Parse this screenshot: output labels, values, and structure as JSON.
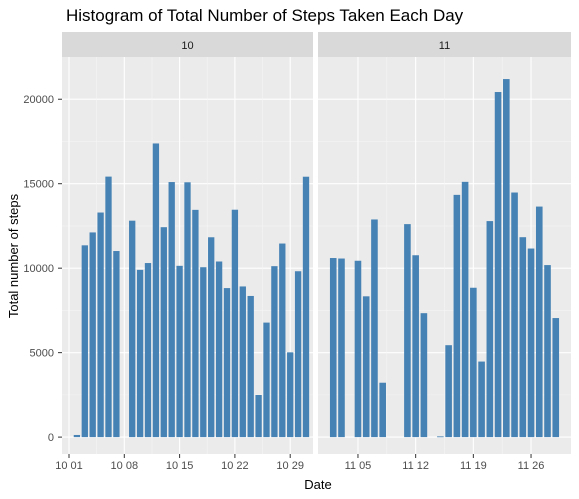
{
  "chart_data": {
    "type": "bar",
    "title": "Histogram of Total Number of Steps Taken Each Day",
    "xlabel": "Date",
    "ylabel": "Total number of steps",
    "ylim": [
      -1000,
      22500
    ],
    "y_ticks": [
      0,
      5000,
      10000,
      15000,
      20000
    ],
    "y_tick_labels": [
      "0",
      "5000",
      "10000",
      "15000",
      "20000"
    ],
    "facets": [
      {
        "label": "10",
        "x_ticks": [
          "10 01",
          "10 08",
          "10 15",
          "10 22",
          "10 29"
        ],
        "x_tick_days": [
          1,
          8,
          15,
          22,
          29
        ],
        "day_range": [
          1,
          31
        ],
        "days": [
          2,
          3,
          4,
          5,
          6,
          7,
          9,
          10,
          11,
          12,
          13,
          14,
          15,
          16,
          17,
          18,
          19,
          20,
          21,
          22,
          23,
          24,
          25,
          26,
          27,
          28,
          29,
          30,
          31
        ],
        "values": [
          126,
          11352,
          12116,
          13294,
          15420,
          11015,
          12811,
          9900,
          10304,
          17382,
          12426,
          15098,
          10139,
          15084,
          13452,
          10056,
          11829,
          10395,
          8821,
          13460,
          8918,
          8355,
          2492,
          6778,
          10119,
          11458,
          5018,
          9819,
          15414
        ]
      },
      {
        "label": "11",
        "x_ticks": [
          "11 05",
          "11 12",
          "11 19",
          "11 26"
        ],
        "x_tick_days": [
          5,
          12,
          19,
          26
        ],
        "day_range": [
          1,
          30
        ],
        "days": [
          2,
          3,
          5,
          6,
          7,
          8,
          11,
          12,
          13,
          15,
          16,
          17,
          18,
          19,
          20,
          21,
          22,
          23,
          24,
          25,
          26,
          27,
          28,
          29
        ],
        "values": [
          10600,
          10571,
          10439,
          8334,
          12883,
          3219,
          12608,
          10765,
          7336,
          41,
          5441,
          14339,
          15110,
          8841,
          4472,
          12787,
          20427,
          21194,
          14478,
          11834,
          11162,
          13646,
          10183,
          7047
        ]
      }
    ]
  }
}
